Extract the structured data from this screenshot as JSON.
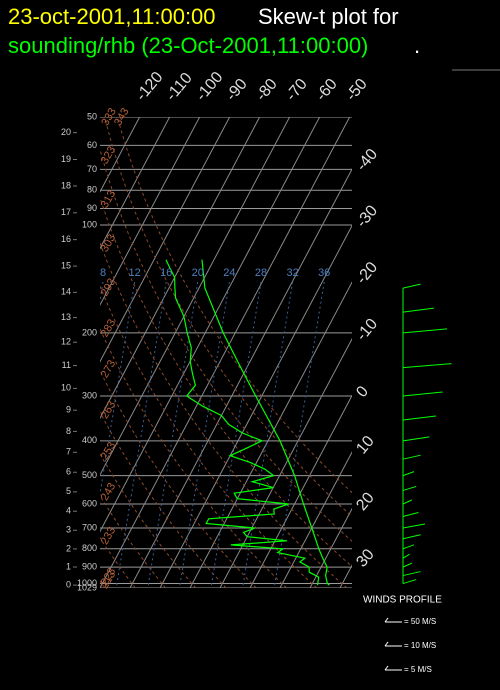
{
  "chart_data": {
    "type": "skewt",
    "title_date": "23-oct-2001,11:00:00",
    "title": "Skew-t plot for",
    "subtitle": "sounding/rhb (23-Oct-2001,11:00:00)",
    "subtitle_end": ".",
    "log_y": true,
    "ylim": [
      1029,
      50
    ],
    "pressure_ticks": [
      50,
      60,
      70,
      80,
      90,
      100,
      200,
      300,
      400,
      500,
      600,
      700,
      800,
      900,
      1000,
      1029
    ],
    "height_ticks": [
      0,
      1,
      2,
      3,
      4,
      5,
      6,
      7,
      8,
      9,
      10,
      11,
      12,
      13,
      14,
      15,
      16,
      17,
      18,
      19,
      20
    ],
    "xticks": [
      -120,
      -110,
      -100,
      -90,
      -80,
      -70,
      -60,
      -50,
      -40,
      -30,
      -20,
      -10,
      0,
      10,
      20,
      30
    ],
    "theta_ticks": [
      213,
      223,
      233,
      243,
      253,
      263,
      273,
      283,
      293,
      303,
      313,
      323,
      333,
      343
    ],
    "mixing_ratio_labels": [
      8,
      12,
      16,
      20,
      24,
      28,
      32,
      36
    ],
    "series": [
      {
        "color": "#00ff00",
        "pressure": [
          1010,
          1000,
          950,
          900,
          850,
          800,
          700,
          600,
          500,
          400,
          300,
          250,
          200,
          150,
          125
        ],
        "values": [
          26,
          25,
          23,
          22,
          19,
          16,
          10,
          3,
          -5,
          -16,
          -32,
          -42,
          -54,
          -68,
          -74
        ]
      },
      {
        "color": "#00ff00",
        "pressure": [
          1010,
          960,
          930,
          900,
          870,
          850,
          820,
          800,
          780,
          760,
          740,
          720,
          700,
          680,
          660,
          640,
          620,
          600,
          580,
          560,
          540,
          520,
          500,
          480,
          460,
          440,
          420,
          400,
          380,
          360,
          340,
          320,
          300,
          280,
          260,
          240,
          220,
          200,
          180,
          160,
          150,
          140,
          130,
          125
        ],
        "values": [
          22,
          21,
          17,
          16,
          12,
          13,
          3,
          4,
          -14,
          4,
          -10,
          -12,
          -9,
          -26,
          -26,
          -5,
          -6,
          -2,
          -20,
          -22,
          -10,
          -18,
          -12,
          -16,
          -22,
          -30,
          -26,
          -22,
          -30,
          -36,
          -40,
          -48,
          -55,
          -54,
          -57,
          -60,
          -62,
          -66,
          -70,
          -76,
          -78,
          -80,
          -84,
          -86
        ]
      }
    ],
    "winds": {
      "title": "WINDS PROFILE",
      "color": "#00ff00",
      "pressure": [
        1000,
        950,
        900,
        850,
        800,
        750,
        700,
        650,
        600,
        550,
        500,
        450,
        400,
        350,
        300,
        250,
        200,
        175,
        150
      ],
      "speed": [
        6,
        8,
        4,
        3,
        5,
        8,
        10,
        7,
        4,
        6,
        5,
        8,
        12,
        15,
        18,
        22,
        20,
        14,
        8
      ],
      "legend": [
        {
          "value": 50,
          "label": "= 50 M/S"
        },
        {
          "value": 10,
          "label": "= 10 M/S"
        },
        {
          "value": 5,
          "label": "= 5 M/S"
        }
      ]
    }
  }
}
